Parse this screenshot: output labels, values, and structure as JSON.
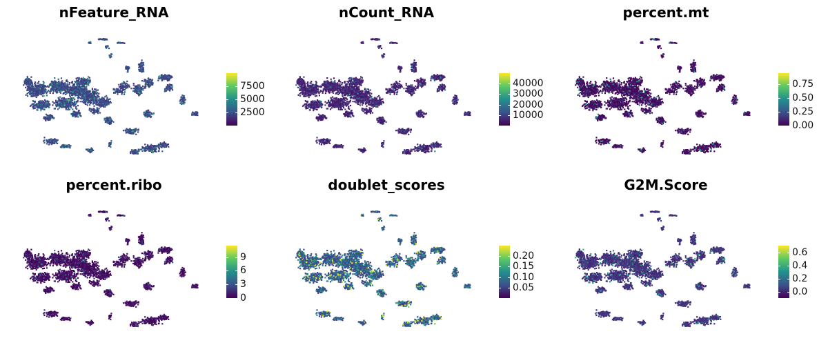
{
  "chart_data": [
    {
      "type": "scatter",
      "title": "nFeature_RNA",
      "legend": {
        "placement": "right",
        "colormap": "viridis",
        "range": [
          0,
          10000
        ],
        "ticks": [
          2500,
          5000,
          7500
        ],
        "tick_labels": [
          "2500",
          "5000",
          "7500"
        ]
      },
      "grid": false,
      "value_profile": {
        "low": 0.15,
        "mid": 0.3,
        "high": 0.45
      }
    },
    {
      "type": "scatter",
      "title": "nCount_RNA",
      "legend": {
        "placement": "right",
        "colormap": "viridis",
        "range": [
          0,
          50000
        ],
        "ticks": [
          10000,
          20000,
          30000,
          40000
        ],
        "tick_labels": [
          "10000",
          "20000",
          "30000",
          "40000"
        ]
      },
      "grid": false,
      "value_profile": {
        "low": 0.05,
        "mid": 0.12,
        "high": 0.2
      }
    },
    {
      "type": "scatter",
      "title": "percent.mt",
      "legend": {
        "placement": "right",
        "colormap": "viridis",
        "range": [
          0,
          0.95
        ],
        "ticks": [
          0.0,
          0.25,
          0.5,
          0.75
        ],
        "tick_labels": [
          "0.00",
          "0.25",
          "0.50",
          "0.75"
        ]
      },
      "grid": false,
      "value_profile": {
        "low": 0.0,
        "mid": 0.03,
        "high": 0.3
      }
    },
    {
      "type": "scatter",
      "title": "percent.ribo",
      "legend": {
        "placement": "right",
        "colormap": "viridis",
        "range": [
          0,
          11.5
        ],
        "ticks": [
          0,
          3,
          6,
          9
        ],
        "tick_labels": [
          "0",
          "3",
          "6",
          "9"
        ]
      },
      "grid": false,
      "value_profile": {
        "low": 0.0,
        "mid": 0.03,
        "high": 0.12
      }
    },
    {
      "type": "scatter",
      "title": "doublet_scores",
      "legend": {
        "placement": "right",
        "colormap": "viridis",
        "range": [
          0.0,
          0.25
        ],
        "ticks": [
          0.05,
          0.1,
          0.15,
          0.2
        ],
        "tick_labels": [
          "0.05",
          "0.10",
          "0.15",
          "0.20"
        ]
      },
      "grid": false,
      "value_profile": {
        "low": 0.2,
        "mid": 0.45,
        "high": 0.75
      }
    },
    {
      "type": "scatter",
      "title": "G2M.Score",
      "legend": {
        "placement": "right",
        "colormap": "viridis",
        "range": [
          -0.1,
          0.7
        ],
        "ticks": [
          0.0,
          0.2,
          0.4,
          0.6
        ],
        "tick_labels": [
          "0.0",
          "0.2",
          "0.4",
          "0.6"
        ]
      },
      "grid": false,
      "value_profile": {
        "low": 0.1,
        "mid": 0.15,
        "high": 0.35
      }
    }
  ]
}
